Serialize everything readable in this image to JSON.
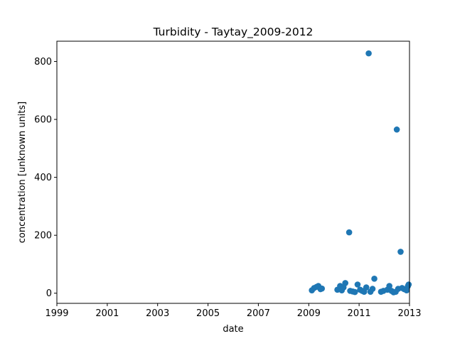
{
  "chart_data": {
    "type": "scatter",
    "title": "Turbidity - Taytay_2009-2012",
    "xlabel": "date",
    "ylabel": "concentration [unknown units]",
    "xlim": [
      "1999-01-01",
      "2013-01-01"
    ],
    "ylim": [
      -35,
      870
    ],
    "x_ticks": [
      "1999",
      "2001",
      "2003",
      "2005",
      "2007",
      "2009",
      "2011",
      "2013"
    ],
    "y_ticks": [
      0,
      200,
      400,
      600,
      800
    ],
    "grid": false,
    "color": "#1f77b4",
    "series": [
      {
        "points": [
          {
            "x": "2009-02-15",
            "y": 10
          },
          {
            "x": "2009-03-20",
            "y": 18
          },
          {
            "x": "2009-04-25",
            "y": 22
          },
          {
            "x": "2009-05-20",
            "y": 25
          },
          {
            "x": "2009-06-20",
            "y": 14
          },
          {
            "x": "2009-07-10",
            "y": 16
          },
          {
            "x": "2010-02-20",
            "y": 12
          },
          {
            "x": "2010-04-01",
            "y": 25
          },
          {
            "x": "2010-04-25",
            "y": 10
          },
          {
            "x": "2010-05-20",
            "y": 20
          },
          {
            "x": "2010-06-15",
            "y": 35
          },
          {
            "x": "2010-08-10",
            "y": 210
          },
          {
            "x": "2010-08-25",
            "y": 8
          },
          {
            "x": "2010-10-01",
            "y": 6
          },
          {
            "x": "2010-11-01",
            "y": 4
          },
          {
            "x": "2010-12-10",
            "y": 30
          },
          {
            "x": "2011-01-15",
            "y": 12
          },
          {
            "x": "2011-02-15",
            "y": 8
          },
          {
            "x": "2011-03-15",
            "y": 5
          },
          {
            "x": "2011-04-15",
            "y": 20
          },
          {
            "x": "2011-05-20",
            "y": 828
          },
          {
            "x": "2011-06-15",
            "y": 5
          },
          {
            "x": "2011-07-15",
            "y": 15
          },
          {
            "x": "2011-08-10",
            "y": 50
          },
          {
            "x": "2011-11-15",
            "y": 5
          },
          {
            "x": "2011-12-20",
            "y": 8
          },
          {
            "x": "2012-02-15",
            "y": 12
          },
          {
            "x": "2012-03-15",
            "y": 25
          },
          {
            "x": "2012-04-15",
            "y": 8
          },
          {
            "x": "2012-05-15",
            "y": 3
          },
          {
            "x": "2012-06-15",
            "y": 5
          },
          {
            "x": "2012-07-01",
            "y": 565
          },
          {
            "x": "2012-07-20",
            "y": 15
          },
          {
            "x": "2012-08-25",
            "y": 143
          },
          {
            "x": "2012-09-15",
            "y": 18
          },
          {
            "x": "2012-10-15",
            "y": 14
          },
          {
            "x": "2012-11-20",
            "y": 10
          },
          {
            "x": "2012-12-10",
            "y": 25
          },
          {
            "x": "2012-12-20",
            "y": 30
          }
        ]
      }
    ]
  }
}
